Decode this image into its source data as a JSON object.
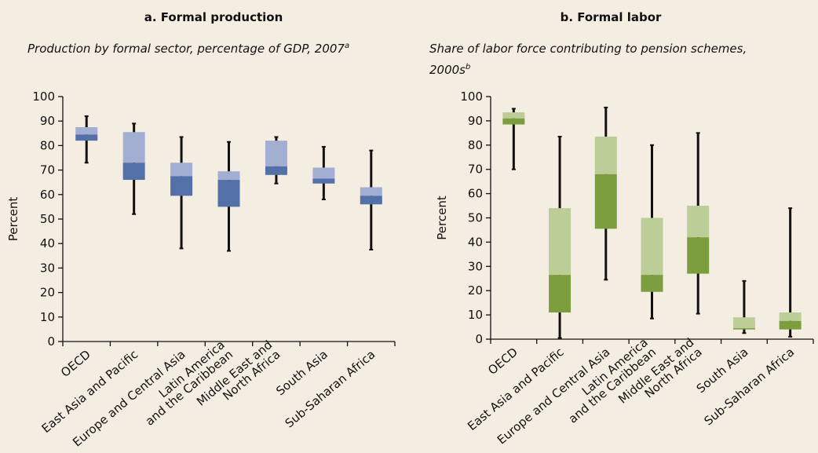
{
  "chart_data": [
    {
      "type": "box",
      "title": "a.  Formal production",
      "subtitle": "Production by formal sector, percentage of GDP, 2007",
      "subtitle_note": "a",
      "ylabel": "Percent",
      "categories": [
        "OECD",
        "East Asia and Pacific",
        "Europe and Central Asia",
        "Latin America\nand the Caribbean",
        "Middle East and\nNorth Africa",
        "South Asia",
        "Sub-Saharan Africa"
      ],
      "whisker_high": [
        92,
        89,
        83.5,
        81.5,
        83.5,
        79.5,
        78
      ],
      "q3": [
        87.5,
        85.5,
        73,
        69.5,
        82,
        71,
        63
      ],
      "median": [
        84.5,
        73,
        67.5,
        66,
        71.5,
        66.5,
        59.5
      ],
      "q1": [
        82,
        66,
        59.5,
        55,
        68,
        64.5,
        56
      ],
      "whisker_low": [
        73,
        52,
        38,
        37,
        64.5,
        58,
        37.5
      ],
      "color_upper": "#a3aed3",
      "color_lower": "#5470a8",
      "ylim": [
        0,
        100
      ],
      "yticks": [
        0,
        10,
        20,
        30,
        40,
        50,
        60,
        70,
        80,
        90,
        100
      ]
    },
    {
      "type": "box",
      "title": "b.  Formal labor",
      "subtitle": "Share of labor force contributing to pension schemes,\n2000s",
      "subtitle_note": "b",
      "ylabel": "Percent",
      "categories": [
        "OECD",
        "East Asia and Pacific",
        "Europe and Central Asia",
        "Latin America\nand the Caribbean",
        "Middle East and\nNorth Africa",
        "South Asia",
        "Sub-Saharan Africa"
      ],
      "whisker_high": [
        95,
        83.5,
        95.5,
        80,
        85,
        24,
        54
      ],
      "q3": [
        93.5,
        54,
        83.5,
        50,
        55,
        9,
        11
      ],
      "median": [
        91,
        26.5,
        68,
        26.5,
        42,
        4.5,
        7.5
      ],
      "q1": [
        88.5,
        11,
        45.5,
        19.5,
        27,
        4,
        4
      ],
      "whisker_low": [
        70,
        0.5,
        24.5,
        8.5,
        10.5,
        2.5,
        1
      ],
      "color_upper": "#bccd97",
      "color_lower": "#7d9e3e",
      "ylim": [
        0,
        100
      ],
      "yticks": [
        0,
        10,
        20,
        30,
        40,
        50,
        60,
        70,
        80,
        90,
        100
      ]
    }
  ]
}
